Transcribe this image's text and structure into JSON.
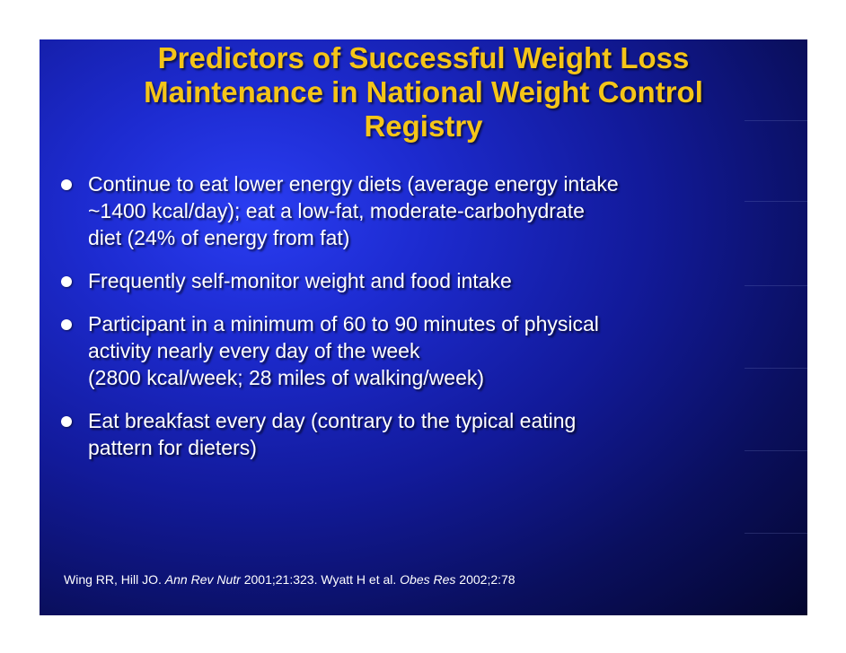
{
  "slide": {
    "title_lines": [
      "Predictors of Successful Weight Loss",
      "Maintenance in National Weight Control",
      "Registry"
    ],
    "bullets": [
      {
        "lines": [
          "Continue to eat lower energy diets (average energy intake",
          "~1400 kcal/day); eat a low-fat, moderate-carbohydrate",
          "diet (24% of energy from fat)"
        ]
      },
      {
        "lines": [
          "Frequently self-monitor weight and food intake"
        ]
      },
      {
        "lines": [
          "Participant in a minimum of 60 to 90 minutes of physical",
          "activity nearly every day of the week",
          "(2800 kcal/week; 28 miles of walking/week)"
        ]
      },
      {
        "lines": [
          "Eat breakfast every day (contrary to the typical eating",
          "pattern for dieters)"
        ]
      }
    ],
    "citation": {
      "part1": "Wing RR, Hill JO. ",
      "journal1": "Ann Rev Nutr",
      "part2": " 2001;21:323.  Wyatt H et al. ",
      "journal2": "Obes Res",
      "part3": " 2002;2:78"
    },
    "colors": {
      "title": "#f5c518",
      "text": "#ffffff",
      "background_center": "#2a3df2",
      "background_edge": "#04062e"
    }
  }
}
